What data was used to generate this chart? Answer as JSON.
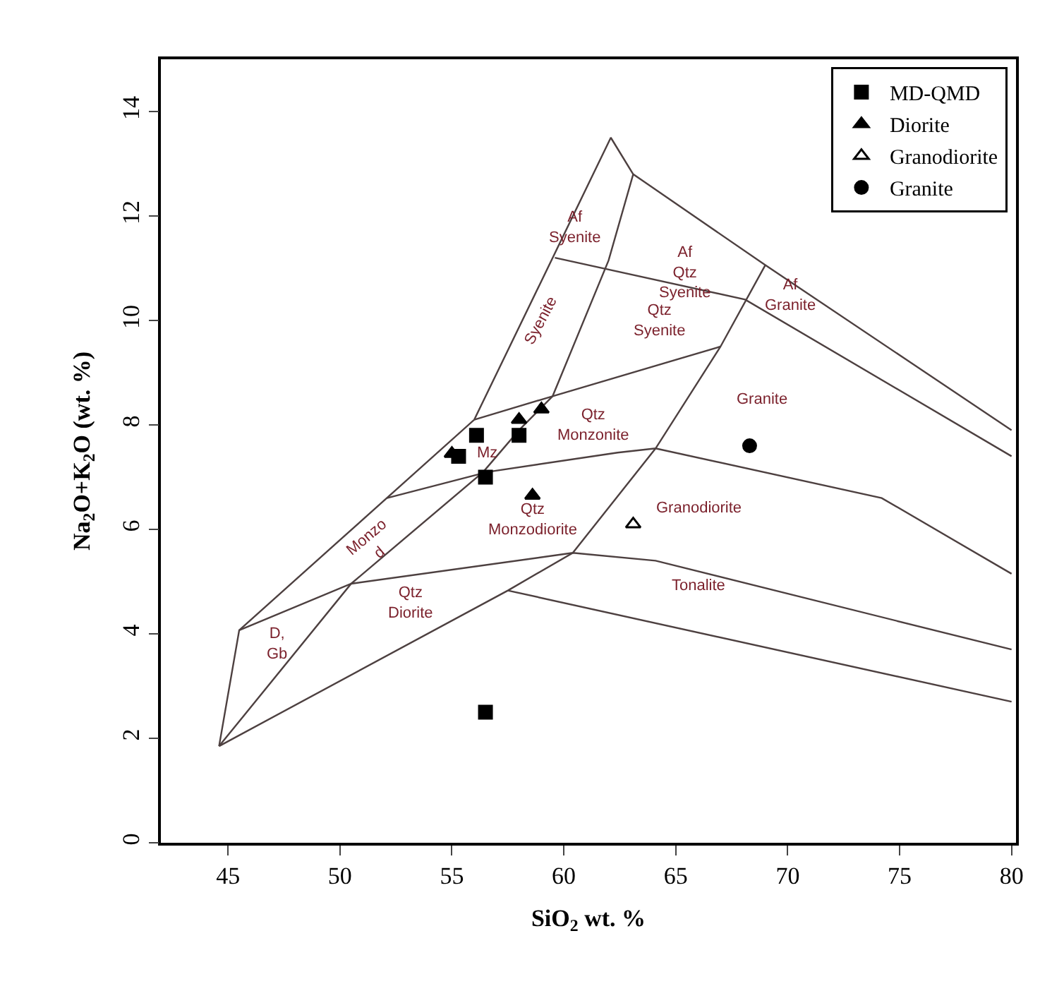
{
  "chart_data": {
    "type": "scatter",
    "xlabel": "SiO$_{2}$ wt. %",
    "ylabel": "Na$_{2}$O+K$_{2}$O (wt. %)",
    "xlim": [
      42,
      80.2
    ],
    "xticks": [
      45,
      50,
      55,
      60,
      65,
      70,
      75,
      80
    ],
    "ylim": [
      0,
      15
    ],
    "yticks": [
      0,
      2,
      4,
      6,
      8,
      10,
      12,
      14
    ],
    "legend": "top right",
    "series": [
      {
        "type": "line",
        "color": "#4d4040",
        "marker": "none",
        "x": [
          44.6,
          45.5,
          56.0,
          62.1,
          63.1,
          69.0,
          80.0
        ],
        "values": [
          1.85,
          4.07,
          8.1,
          13.5,
          12.8,
          11.06,
          7.9
        ]
      },
      {
        "type": "line",
        "color": "#4d4040",
        "marker": "none",
        "x": [
          44.6,
          57.5,
          60.4,
          64.1,
          67.0,
          69.0
        ],
        "values": [
          1.85,
          4.83,
          5.55,
          7.55,
          9.5,
          11.06
        ]
      },
      {
        "type": "line",
        "color": "#4d4040",
        "marker": "none",
        "x": [
          45.5,
          50.5,
          60.4,
          64.1,
          80.0
        ],
        "values": [
          4.07,
          4.96,
          5.55,
          5.4,
          3.7
        ]
      },
      {
        "type": "line",
        "color": "#4d4040",
        "marker": "none",
        "x": [
          57.5,
          80.0
        ],
        "values": [
          4.83,
          2.7
        ]
      },
      {
        "type": "line",
        "color": "#4d4040",
        "marker": "none",
        "x": [
          52.1,
          56.6,
          62.4,
          64.1,
          74.2,
          80.0
        ],
        "values": [
          6.6,
          7.1,
          7.47,
          7.55,
          6.6,
          5.15
        ]
      },
      {
        "type": "line",
        "color": "#4d4040",
        "marker": "none",
        "x": [
          59.6,
          68.1,
          80.0
        ],
        "values": [
          11.2,
          10.4,
          7.4
        ]
      },
      {
        "type": "line",
        "color": "#4d4040",
        "marker": "none",
        "x": [
          44.6,
          50.5,
          56.4,
          58.0,
          59.5,
          62.0,
          63.1
        ],
        "values": [
          1.85,
          4.96,
          7.1,
          7.9,
          8.55,
          11.15,
          12.8
        ]
      },
      {
        "type": "line",
        "color": "#4d4040",
        "marker": "none",
        "x": [
          56.0,
          59.5,
          67.0
        ],
        "values": [
          8.1,
          8.55,
          9.5
        ]
      },
      {
        "name": "MD-QMD",
        "color": "#000000",
        "marker": "square",
        "x": [
          56.1,
          58.0,
          55.3,
          56.5,
          56.5
        ],
        "values": [
          7.8,
          7.8,
          7.4,
          7.0,
          2.5
        ]
      },
      {
        "name": "Diorite",
        "color": "#000000",
        "marker": "triangle",
        "x": [
          58.0,
          59.0,
          55.0,
          58.6
        ],
        "values": [
          8.1,
          8.3,
          7.45,
          6.65
        ]
      },
      {
        "name": "Granodiorite",
        "color": "#000000",
        "marker": "triangle-open",
        "x": [
          63.1
        ],
        "values": [
          6.1
        ]
      },
      {
        "name": "Granite",
        "color": "#000000",
        "marker": "circle",
        "x": [
          68.3
        ],
        "values": [
          7.6
        ]
      }
    ],
    "annotations": [
      "Af\nSyenite",
      "Syenite",
      "Af\nQtz\nSyenite",
      "Qtz\nSyenite",
      "Af\nGranite",
      "Granite",
      "Qtz\nMonzonite",
      "Mz",
      "Qtz\nMonzodiorite",
      "Monzo\nd",
      "Qtz\nDiorite",
      "D,\nGb",
      "Granodiorite",
      "Tonalite"
    ]
  }
}
